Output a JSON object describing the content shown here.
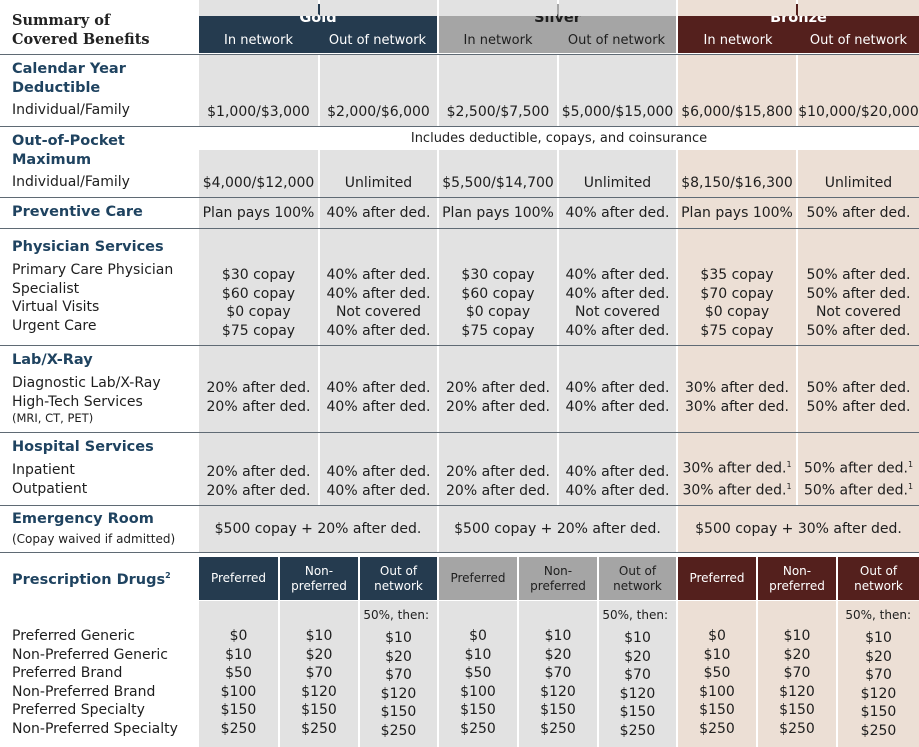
{
  "title_line1": "Summary of",
  "title_line2": "Covered Benefits",
  "colors": {
    "gold": "#253b4f",
    "silver": "#a5a5a5",
    "bronze": "#54201d",
    "gold_bg": "#e2e2e2",
    "bronze_bg": "#ecdfd5",
    "section": "#1f4360"
  },
  "tiers": [
    {
      "name": "Gold",
      "in": "In network",
      "out": "Out of network"
    },
    {
      "name": "Silver",
      "in": "In network",
      "out": "Out of network"
    },
    {
      "name": "Bronze",
      "in": "In network",
      "out": "Out of network"
    }
  ],
  "deductible": {
    "title_1": "Calendar Year",
    "title_2": "Deductible",
    "label": "Individual/Family",
    "values": [
      "$1,000/$3,000",
      "$2,000/$6,000",
      "$2,500/$7,500",
      "$5,000/$15,000",
      "$6,000/$15,800",
      "$10,000/$20,000"
    ]
  },
  "oop": {
    "title_1": "Out-of-Pocket",
    "title_2": "Maximum",
    "label": "Individual/Family",
    "note": "Includes deductible, copays, and coinsurance",
    "values": [
      "$4,000/$12,000",
      "Unlimited",
      "$5,500/$14,700",
      "Unlimited",
      "$8,150/$16,300",
      "Unlimited"
    ]
  },
  "preventive": {
    "title": "Preventive Care",
    "values": [
      "Plan pays 100%",
      "40% after ded.",
      "Plan pays 100%",
      "40% after ded.",
      "Plan pays 100%",
      "50% after ded."
    ]
  },
  "physician": {
    "title": "Physician Services",
    "labels": [
      "Primary Care Physician",
      "Specialist",
      "Virtual Visits",
      "Urgent Care"
    ],
    "cols": [
      [
        "$30 copay",
        "$60 copay",
        "$0 copay",
        "$75 copay"
      ],
      [
        "40% after ded.",
        "40% after ded.",
        "Not covered",
        "40% after ded."
      ],
      [
        "$30 copay",
        "$60 copay",
        "$0 copay",
        "$75 copay"
      ],
      [
        "40% after ded.",
        "40% after ded.",
        "Not covered",
        "40% after ded."
      ],
      [
        "$35 copay",
        "$70 copay",
        "$0 copay",
        "$75 copay"
      ],
      [
        "50% after ded.",
        "50% after ded.",
        "Not covered",
        "50% after ded."
      ]
    ]
  },
  "lab": {
    "title": "Lab/X-Ray",
    "label_1": "Diagnostic Lab/X-Ray",
    "label_2": "High-Tech Services",
    "label_2_sub": "(MRI, CT, PET)",
    "cols": [
      [
        "20% after ded.",
        "20% after ded."
      ],
      [
        "40% after ded.",
        "40% after ded."
      ],
      [
        "20% after ded.",
        "20% after ded."
      ],
      [
        "40% after ded.",
        "40% after ded."
      ],
      [
        "30% after ded.",
        "30% after ded."
      ],
      [
        "50% after ded.",
        "50% after ded."
      ]
    ]
  },
  "hospital": {
    "title": "Hospital Services",
    "labels": [
      "Inpatient",
      "Outpatient"
    ],
    "footnote": "1",
    "cols": [
      [
        "20% after ded.",
        "20% after ded."
      ],
      [
        "40% after ded.",
        "40% after ded."
      ],
      [
        "20% after ded.",
        "20% after ded."
      ],
      [
        "40% after ded.",
        "40% after ded."
      ],
      [
        "30% after ded.",
        "30% after ded."
      ],
      [
        "50% after ded.",
        "50% after ded."
      ]
    ]
  },
  "er": {
    "title": "Emergency Room",
    "sub": "(Copay waived if admitted)",
    "values": [
      "$500 copay + 20% after ded.",
      "$500 copay + 20% after ded.",
      "$500 copay + 30% after ded."
    ]
  },
  "rx": {
    "title": "Prescription Drugs",
    "footnote": "2",
    "hdr_pref": "Preferred",
    "hdr_nonpref_1": "Non-",
    "hdr_nonpref_2": "preferred",
    "hdr_out_1": "Out of",
    "hdr_out_2": "network",
    "then_note": "50%, then:",
    "labels": [
      "Preferred Generic",
      "Non-Preferred Generic",
      "Preferred Brand",
      "Non-Preferred Brand",
      "Preferred Specialty",
      "Non-Preferred Specialty"
    ],
    "pref": [
      "$0",
      "$10",
      "$50",
      "$100",
      "$150",
      "$250"
    ],
    "nonpref": [
      "$10",
      "$20",
      "$70",
      "$120",
      "$150",
      "$250"
    ],
    "out": [
      "$10",
      "$20",
      "$70",
      "$120",
      "$150",
      "$250"
    ]
  }
}
